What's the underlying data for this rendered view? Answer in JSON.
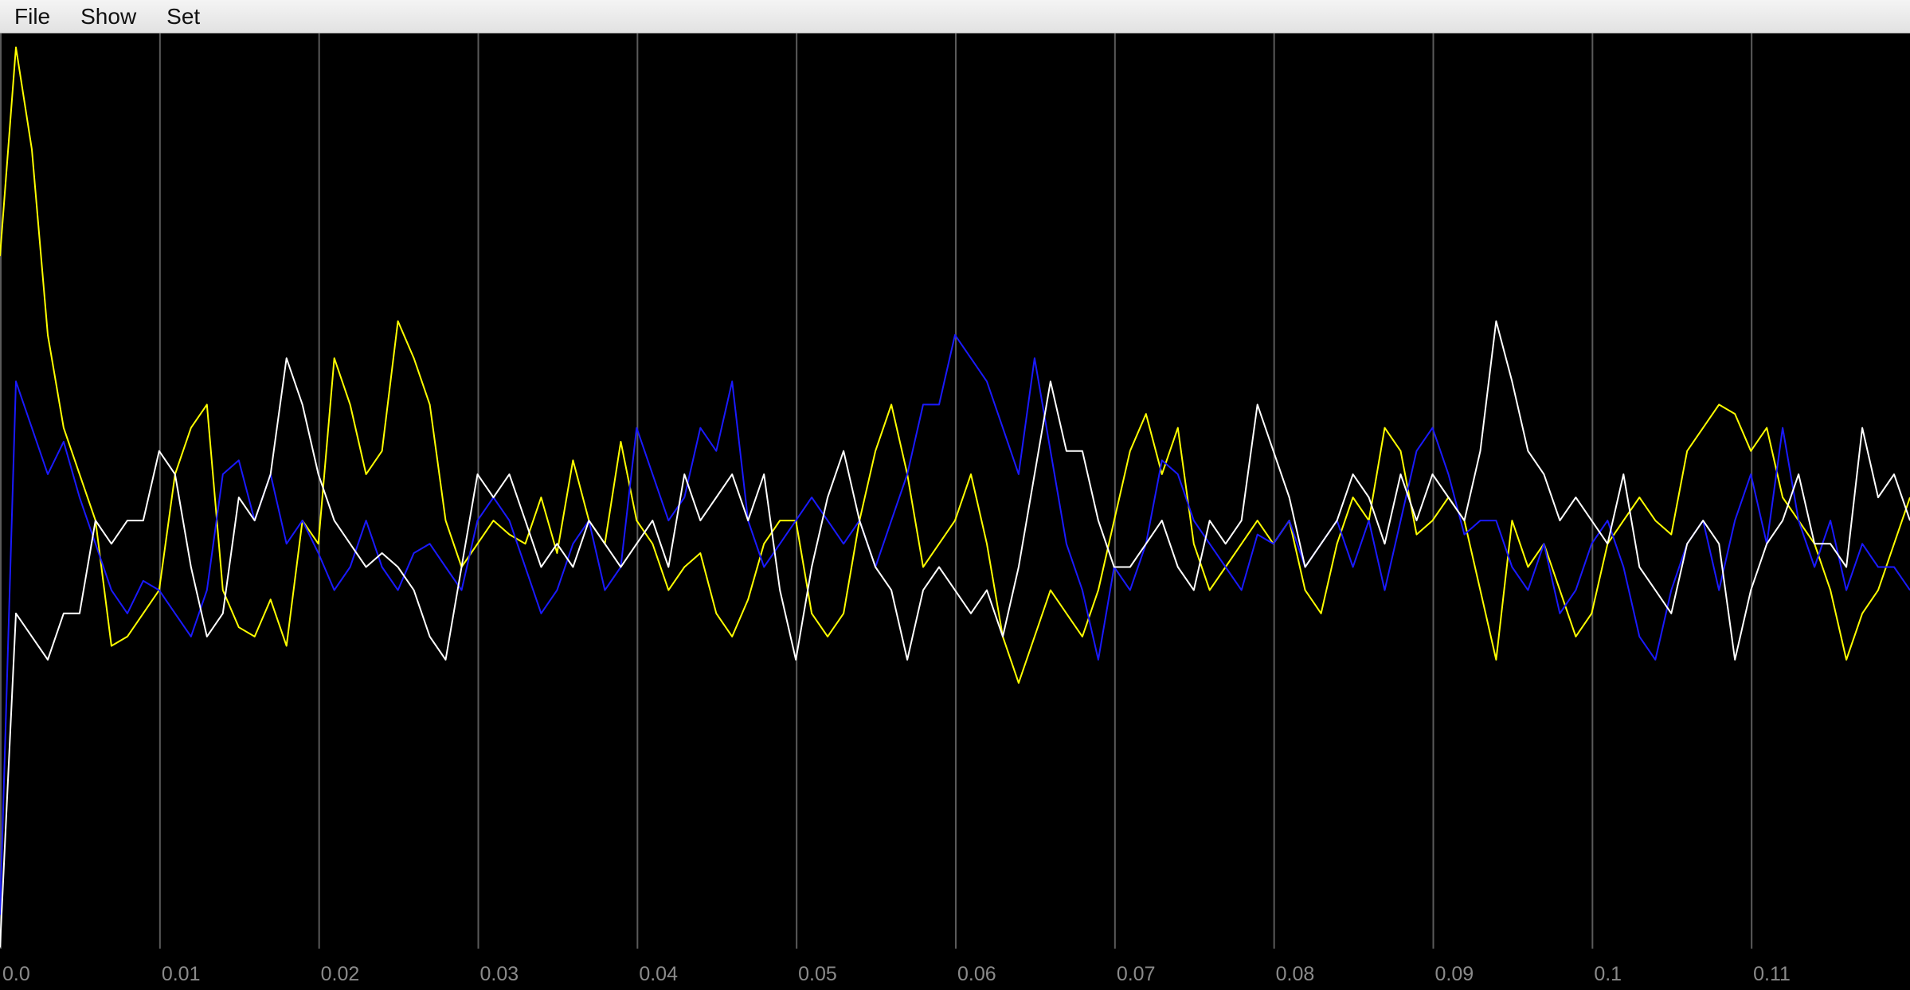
{
  "menu": [
    "File",
    "Show",
    "Set"
  ],
  "chart_data": {
    "type": "line",
    "xlim": [
      0,
      0.12
    ],
    "ylim": [
      -1,
      1
    ],
    "xticks": [
      {
        "value": 0,
        "label": "0.0"
      },
      0.01,
      0.02,
      0.03,
      0.04,
      0.05,
      0.06,
      0.07,
      0.08,
      0.09,
      0.1,
      0.11
    ],
    "grid": true,
    "x": [
      0,
      0.001,
      0.002,
      0.003,
      0.004,
      0.005,
      0.006,
      0.007,
      0.008,
      0.009,
      0.01,
      0.011,
      0.012,
      0.013,
      0.014,
      0.015,
      0.016,
      0.017,
      0.018,
      0.019,
      0.02,
      0.021,
      0.022,
      0.023,
      0.024,
      0.025,
      0.026,
      0.027,
      0.028,
      0.029,
      0.03,
      0.031,
      0.032,
      0.033,
      0.034,
      0.035,
      0.036,
      0.037,
      0.038,
      0.039,
      0.04,
      0.041,
      0.042,
      0.043,
      0.044,
      0.045,
      0.046,
      0.047,
      0.048,
      0.049,
      0.05,
      0.051,
      0.052,
      0.053,
      0.054,
      0.055,
      0.056,
      0.057,
      0.058,
      0.059,
      0.06,
      0.061,
      0.062,
      0.063,
      0.064,
      0.065,
      0.066,
      0.067,
      0.068,
      0.069,
      0.07,
      0.071,
      0.072,
      0.073,
      0.074,
      0.075,
      0.076,
      0.077,
      0.078,
      0.079,
      0.08,
      0.081,
      0.082,
      0.083,
      0.084,
      0.085,
      0.086,
      0.087,
      0.088,
      0.089,
      0.09,
      0.091,
      0.092,
      0.093,
      0.094,
      0.095,
      0.096,
      0.097,
      0.098,
      0.099,
      0.1,
      0.101,
      0.102,
      0.103,
      0.104,
      0.105,
      0.106,
      0.107,
      0.108,
      0.109,
      0.11,
      0.111,
      0.112,
      0.113,
      0.114,
      0.115,
      0.116,
      0.117,
      0.118,
      0.119,
      0.12
    ],
    "series": [
      {
        "color": "#ffff00",
        "values": [
          0.52,
          0.97,
          0.75,
          0.35,
          0.15,
          0.05,
          -0.05,
          -0.32,
          -0.3,
          -0.25,
          -0.2,
          0.05,
          0.15,
          0.2,
          -0.2,
          -0.28,
          -0.3,
          -0.22,
          -0.32,
          -0.05,
          -0.1,
          0.3,
          0.2,
          0.05,
          0.1,
          0.38,
          0.3,
          0.2,
          -0.05,
          -0.15,
          -0.1,
          -0.05,
          -0.08,
          -0.1,
          0,
          -0.12,
          0.08,
          -0.05,
          -0.1,
          0.12,
          -0.05,
          -0.1,
          -0.2,
          -0.15,
          -0.12,
          -0.25,
          -0.3,
          -0.22,
          -0.1,
          -0.05,
          -0.05,
          -0.25,
          -0.3,
          -0.25,
          -0.05,
          0.1,
          0.2,
          0.05,
          -0.15,
          -0.1,
          -0.05,
          0.05,
          -0.1,
          -0.3,
          -0.4,
          -0.3,
          -0.2,
          -0.25,
          -0.3,
          -0.2,
          -0.05,
          0.1,
          0.18,
          0.05,
          0.15,
          -0.1,
          -0.2,
          -0.15,
          -0.1,
          -0.05,
          -0.1,
          -0.05,
          -0.2,
          -0.25,
          -0.1,
          0,
          -0.05,
          0.15,
          0.1,
          -0.08,
          -0.05,
          0,
          -0.05,
          -0.2,
          -0.35,
          -0.05,
          -0.15,
          -0.1,
          -0.2,
          -0.3,
          -0.25,
          -0.1,
          -0.05,
          0,
          -0.05,
          -0.08,
          0.1,
          0.15,
          0.2,
          0.18,
          0.1,
          0.15,
          0,
          -0.05,
          -0.1,
          -0.2,
          -0.35,
          -0.25,
          -0.2,
          -0.1,
          0
        ]
      },
      {
        "color": "#1a1aff",
        "values": [
          -0.9,
          0.25,
          0.15,
          0.05,
          0.12,
          0,
          -0.1,
          -0.2,
          -0.25,
          -0.18,
          -0.2,
          -0.25,
          -0.3,
          -0.2,
          0.05,
          0.08,
          -0.05,
          0.05,
          -0.1,
          -0.05,
          -0.12,
          -0.2,
          -0.15,
          -0.05,
          -0.15,
          -0.2,
          -0.12,
          -0.1,
          -0.15,
          -0.2,
          -0.05,
          0,
          -0.05,
          -0.15,
          -0.25,
          -0.2,
          -0.1,
          -0.05,
          -0.2,
          -0.15,
          0.15,
          0.05,
          -0.05,
          0,
          0.15,
          0.1,
          0.25,
          -0.05,
          -0.15,
          -0.1,
          -0.05,
          0,
          -0.05,
          -0.1,
          -0.05,
          -0.15,
          -0.05,
          0.05,
          0.2,
          0.2,
          0.35,
          0.3,
          0.25,
          0.15,
          0.05,
          0.3,
          0.1,
          -0.1,
          -0.2,
          -0.35,
          -0.15,
          -0.2,
          -0.1,
          0.08,
          0.05,
          -0.05,
          -0.1,
          -0.15,
          -0.2,
          -0.08,
          -0.1,
          -0.05,
          -0.15,
          -0.1,
          -0.05,
          -0.15,
          -0.05,
          -0.2,
          -0.05,
          0.1,
          0.15,
          0.05,
          -0.08,
          -0.05,
          -0.05,
          -0.15,
          -0.2,
          -0.1,
          -0.25,
          -0.2,
          -0.1,
          -0.05,
          -0.15,
          -0.3,
          -0.35,
          -0.2,
          -0.1,
          -0.05,
          -0.2,
          -0.05,
          0.05,
          -0.1,
          0.15,
          -0.05,
          -0.15,
          -0.05,
          -0.2,
          -0.1,
          -0.15,
          -0.15,
          -0.2
        ]
      },
      {
        "color": "#ffffff",
        "values": [
          -0.97,
          -0.25,
          -0.3,
          -0.35,
          -0.25,
          -0.25,
          -0.05,
          -0.1,
          -0.05,
          -0.05,
          0.1,
          0.05,
          -0.15,
          -0.3,
          -0.25,
          0,
          -0.05,
          0.05,
          0.3,
          0.2,
          0.05,
          -0.05,
          -0.1,
          -0.15,
          -0.12,
          -0.15,
          -0.2,
          -0.3,
          -0.35,
          -0.15,
          0.05,
          0,
          0.05,
          -0.05,
          -0.15,
          -0.1,
          -0.15,
          -0.05,
          -0.1,
          -0.15,
          -0.1,
          -0.05,
          -0.15,
          0.05,
          -0.05,
          0,
          0.05,
          -0.05,
          0.05,
          -0.2,
          -0.35,
          -0.15,
          0,
          0.1,
          -0.05,
          -0.15,
          -0.2,
          -0.35,
          -0.2,
          -0.15,
          -0.2,
          -0.25,
          -0.2,
          -0.3,
          -0.15,
          0.05,
          0.25,
          0.1,
          0.1,
          -0.05,
          -0.15,
          -0.15,
          -0.1,
          -0.05,
          -0.15,
          -0.2,
          -0.05,
          -0.1,
          -0.05,
          0.2,
          0.1,
          0,
          -0.15,
          -0.1,
          -0.05,
          0.05,
          0,
          -0.1,
          0.05,
          -0.05,
          0.05,
          0,
          -0.05,
          0.1,
          0.38,
          0.25,
          0.1,
          0.05,
          -0.05,
          0,
          -0.05,
          -0.1,
          0.05,
          -0.15,
          -0.2,
          -0.25,
          -0.1,
          -0.05,
          -0.1,
          -0.35,
          -0.2,
          -0.1,
          -0.05,
          0.05,
          -0.1,
          -0.1,
          -0.15,
          0.15,
          0,
          0.05,
          -0.05
        ]
      }
    ]
  }
}
